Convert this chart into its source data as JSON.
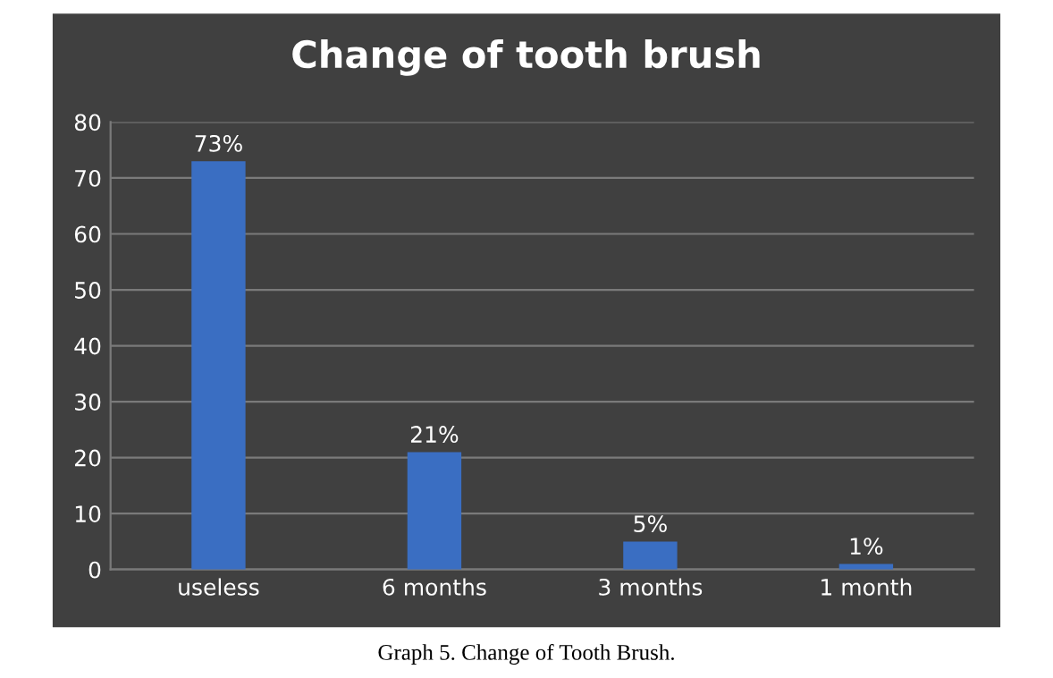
{
  "chart_data": {
    "type": "bar",
    "title": "Change of tooth brush",
    "categories": [
      "useless",
      "6 months",
      "3 months",
      "1 month"
    ],
    "values": [
      73,
      21,
      5,
      1
    ],
    "value_labels": [
      "73%",
      "21%",
      "5%",
      "1%"
    ],
    "color": "#3a6ec2",
    "ylim": [
      0,
      80
    ],
    "yticks": [
      0,
      10,
      20,
      30,
      40,
      50,
      60,
      70,
      80
    ],
    "grid": "y",
    "legend": false,
    "annotations": [
      "Graph 5. Change of Tooth Brush."
    ]
  }
}
